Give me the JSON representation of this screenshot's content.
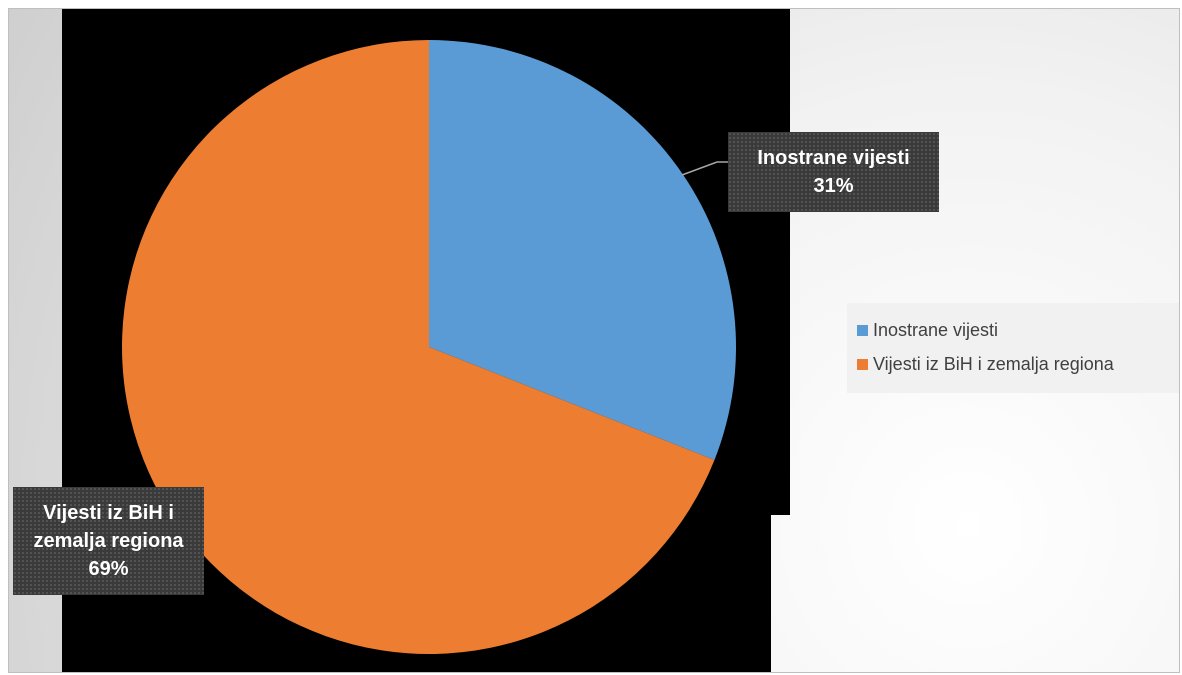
{
  "chart_data": {
    "type": "pie",
    "title": "",
    "categories": [
      "Inostrane vijesti",
      "Vijesti iz BiH i zemalja regiona"
    ],
    "values": [
      31,
      69
    ],
    "value_format": "percent",
    "colors": [
      "#5b9bd5",
      "#ed7d31"
    ],
    "start_angle_deg": 0,
    "direction": "clockwise",
    "legend_position": "right",
    "data_labels": [
      {
        "category": "Inostrane vijesti",
        "line1": "Inostrane vijesti",
        "line2": "31%"
      },
      {
        "category": "Vijesti iz BiH i zemalja regiona",
        "line1": "Vijesti iz BiH i",
        "line2": "zemalja regiona",
        "line3": "69%"
      }
    ]
  },
  "legend": {
    "items": [
      {
        "label": "Inostrane vijesti",
        "color": "#5b9bd5"
      },
      {
        "label": "Vijesti iz BiH i zemalja regiona",
        "color": "#ed7d31"
      }
    ]
  }
}
